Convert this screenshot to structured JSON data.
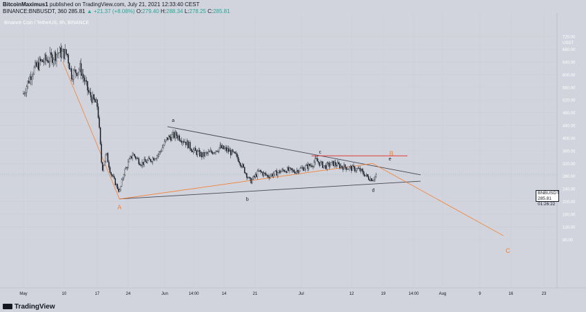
{
  "header": {
    "line1_author": "BitcoinMaximus1",
    "line1_rest": "published on TradingView.com, July 21, 2021 12:33:40 CEST",
    "line2_symbol": "BINANCE:BNBUSDT, 360",
    "line2_last": "285.81",
    "line2_change": "▲ +21.37 (+8.08%)",
    "line2_o": "O:",
    "line2_o_val": "279.40",
    "line2_h": "H:",
    "line2_h_val": "288.34",
    "line2_l": "L:",
    "line2_l_val": "278.25",
    "line2_c": "C:",
    "line2_c_val": "285.81"
  },
  "watermark": "Binance Coin / TetherUS, 6h, BINANCE",
  "price_tag": {
    "symbol": "BNBUSDT",
    "price": "285.81",
    "timer": "01:26:22"
  },
  "footer_logo": "TradingView",
  "colors": {
    "background": "#d1d4dc",
    "candle": "#131722",
    "orange": "#f57f30",
    "red": "#e53935",
    "trend": "#434651"
  },
  "chart_data": {
    "type": "candlestick",
    "x_axis_labels": [
      "May",
      "10",
      "17",
      "24",
      "Jun",
      "14:00",
      "14",
      "21",
      "Jul",
      "12",
      "19",
      "14:00",
      "Aug",
      "9",
      "16",
      "23"
    ],
    "y_axis_labels": [
      "720.00",
      "USDT",
      "680.00",
      "640.00",
      "600.00",
      "560.00",
      "520.00",
      "480.00",
      "440.00",
      "400.00",
      "360.00",
      "320.00",
      "280.00",
      "240.00",
      "200.00",
      "160.00",
      "120.00",
      "80.00"
    ],
    "y_ticks": [
      720,
      680,
      640,
      600,
      560,
      520,
      480,
      440,
      400,
      360,
      320,
      280,
      240,
      200,
      160,
      120,
      80
    ],
    "ylim": [
      55,
      745
    ],
    "last_price": 285.81,
    "price_path": [
      [
        "2021-05-01",
        540
      ],
      [
        "2021-05-03",
        610
      ],
      [
        "2021-05-05",
        640
      ],
      [
        "2021-05-07",
        650
      ],
      [
        "2021-05-09",
        670
      ],
      [
        "2021-05-11",
        665
      ],
      [
        "2021-05-12",
        600
      ],
      [
        "2021-05-14",
        620
      ],
      [
        "2021-05-16",
        540
      ],
      [
        "2021-05-18",
        500
      ],
      [
        "2021-05-19",
        300
      ],
      [
        "2021-05-20",
        350
      ],
      [
        "2021-05-21",
        290
      ],
      [
        "2021-05-23",
        230
      ],
      [
        "2021-05-24",
        290
      ],
      [
        "2021-05-26",
        350
      ],
      [
        "2021-05-28",
        320
      ],
      [
        "2021-05-30",
        330
      ],
      [
        "2021-06-01",
        350
      ],
      [
        "2021-06-03",
        400
      ],
      [
        "2021-06-05",
        410
      ],
      [
        "2021-06-07",
        390
      ],
      [
        "2021-06-09",
        360
      ],
      [
        "2021-06-11",
        345
      ],
      [
        "2021-06-13",
        355
      ],
      [
        "2021-06-15",
        370
      ],
      [
        "2021-06-17",
        360
      ],
      [
        "2021-06-19",
        340
      ],
      [
        "2021-06-20",
        315
      ],
      [
        "2021-06-22",
        262
      ],
      [
        "2021-06-24",
        295
      ],
      [
        "2021-06-26",
        280
      ],
      [
        "2021-06-28",
        290
      ],
      [
        "2021-06-30",
        300
      ],
      [
        "2021-07-02",
        295
      ],
      [
        "2021-07-04",
        305
      ],
      [
        "2021-07-06",
        315
      ],
      [
        "2021-07-07",
        330
      ],
      [
        "2021-07-09",
        310
      ],
      [
        "2021-07-11",
        320
      ],
      [
        "2021-07-13",
        310
      ],
      [
        "2021-07-15",
        305
      ],
      [
        "2021-07-17",
        300
      ],
      [
        "2021-07-19",
        275
      ],
      [
        "2021-07-20",
        270
      ],
      [
        "2021-07-21",
        286
      ]
    ],
    "wave_labels": [
      {
        "label": "A",
        "date": "2021-05-23",
        "price": 210
      },
      {
        "label": "a",
        "date": "2021-06-04",
        "price": 436
      },
      {
        "label": "b",
        "date": "2021-06-21",
        "price": 222
      },
      {
        "label": "c",
        "date": "2021-07-08",
        "price": 338
      },
      {
        "label": "d",
        "date": "2021-07-20",
        "price": 252
      },
      {
        "label": "e",
        "date": "2021-07-24",
        "price": 325
      },
      {
        "label": "B",
        "date": "2021-07-24",
        "price": 340
      },
      {
        "label": "C",
        "date": "2021-08-20",
        "price": 60
      }
    ],
    "trend_lines": [
      {
        "name": "upper",
        "from": [
          "2021-06-03",
          436
        ],
        "to": [
          "2021-07-31",
          284
        ]
      },
      {
        "name": "lower",
        "from": [
          "2021-05-23",
          208
        ],
        "to": [
          "2021-07-31",
          264
        ]
      },
      {
        "name": "resistance",
        "from": [
          "2021-07-06",
          344
        ],
        "to": [
          "2021-07-28",
          344
        ]
      }
    ],
    "orange_path": [
      [
        "2021-05-10",
        640
      ],
      [
        "2021-05-23",
        208
      ],
      [
        "2021-07-20",
        320
      ],
      [
        "2021-08-19",
        92
      ]
    ]
  }
}
